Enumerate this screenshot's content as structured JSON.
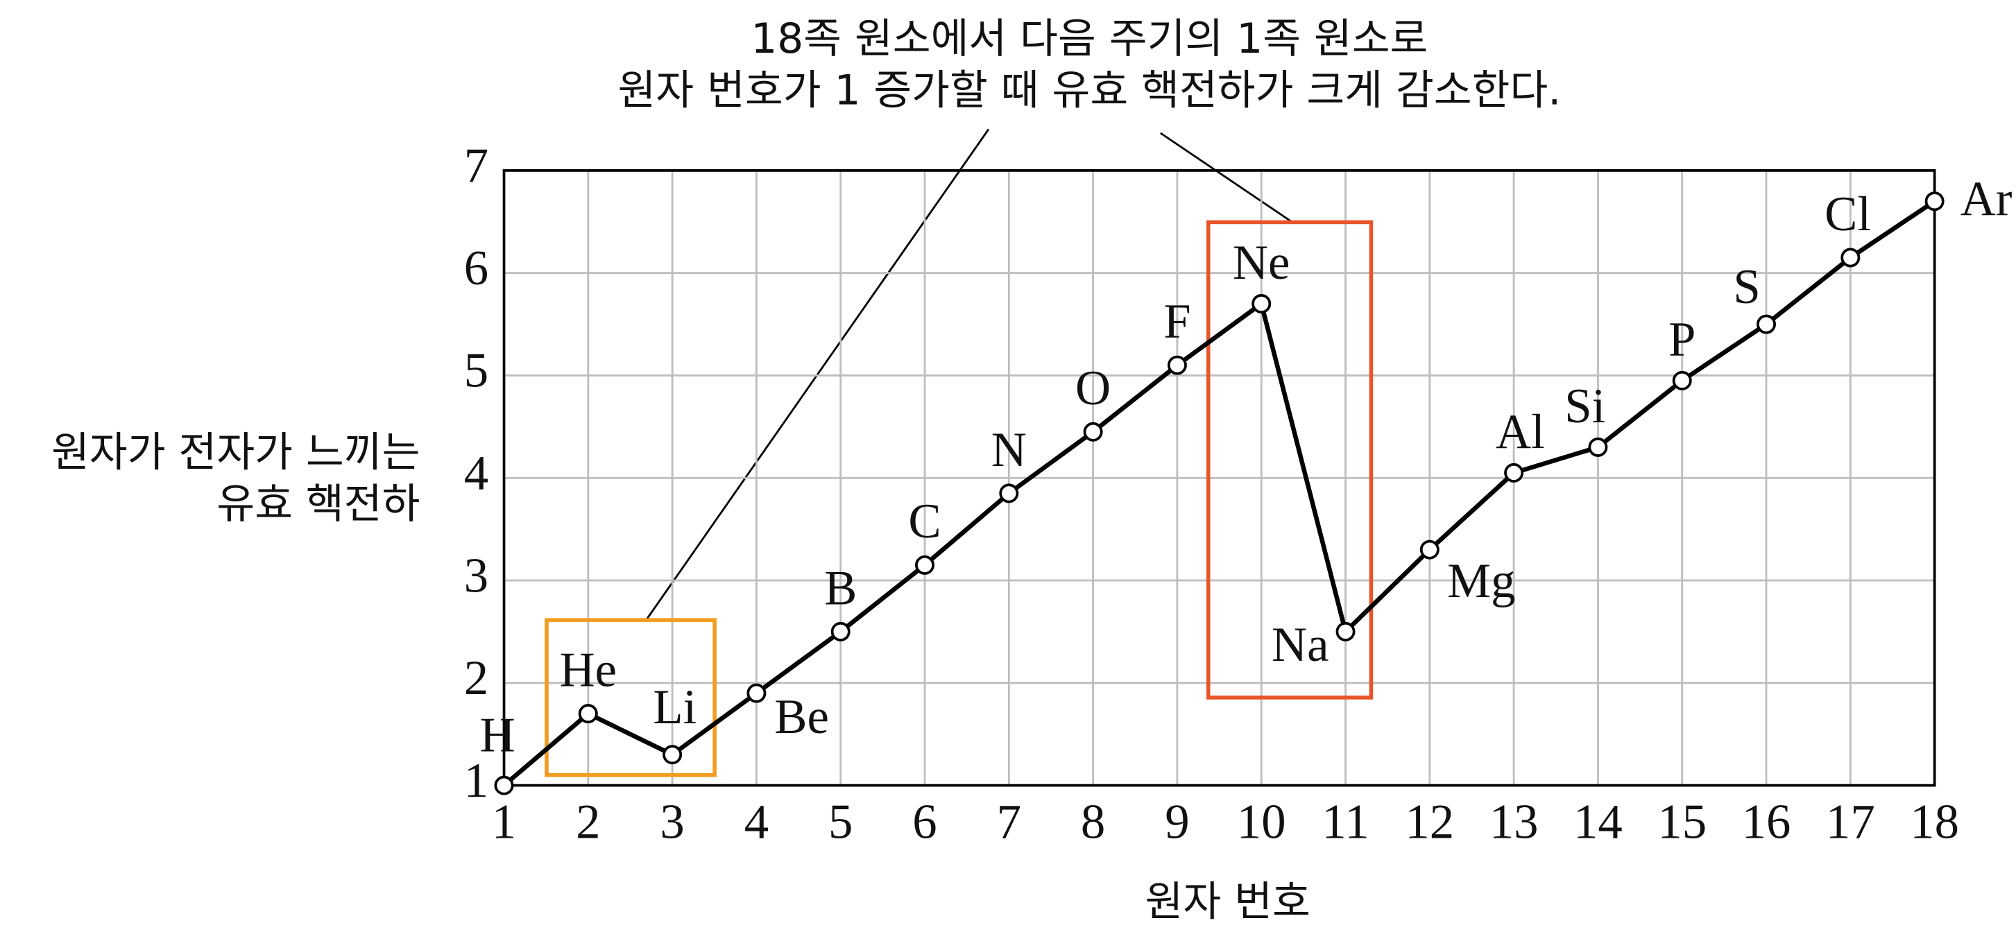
{
  "chart_data": {
    "type": "line",
    "annotation": [
      "18족 원소에서 다음 주기의 1족 원소로",
      "원자 번호가 1 증가할 때 유효 핵전하가 크게 감소한다."
    ],
    "xlabel": "원자 번호",
    "ylabel": [
      "원자가 전자가 느끼는",
      "유효 핵전하"
    ],
    "x": [
      1,
      2,
      3,
      4,
      5,
      6,
      7,
      8,
      9,
      10,
      11,
      12,
      13,
      14,
      15,
      16,
      17,
      18
    ],
    "values": [
      1.0,
      1.7,
      1.3,
      1.9,
      2.5,
      3.15,
      3.85,
      4.45,
      5.1,
      5.7,
      2.5,
      3.3,
      4.05,
      4.3,
      4.95,
      5.5,
      6.15,
      6.7
    ],
    "point_labels": [
      "H",
      "He",
      "Li",
      "Be",
      "B",
      "C",
      "N",
      "O",
      "F",
      "Ne",
      "Na",
      "Mg",
      "Al",
      "Si",
      "P",
      "S",
      "Cl",
      "Ar"
    ],
    "color": "#000000",
    "xlim": [
      1,
      18
    ],
    "xticks": [
      1,
      2,
      3,
      4,
      5,
      6,
      7,
      8,
      9,
      10,
      11,
      12,
      13,
      14,
      15,
      16,
      17,
      18
    ],
    "ylim": [
      1,
      7
    ],
    "yticks": [
      1,
      2,
      3,
      4,
      5,
      6,
      7
    ],
    "grid": true
  }
}
